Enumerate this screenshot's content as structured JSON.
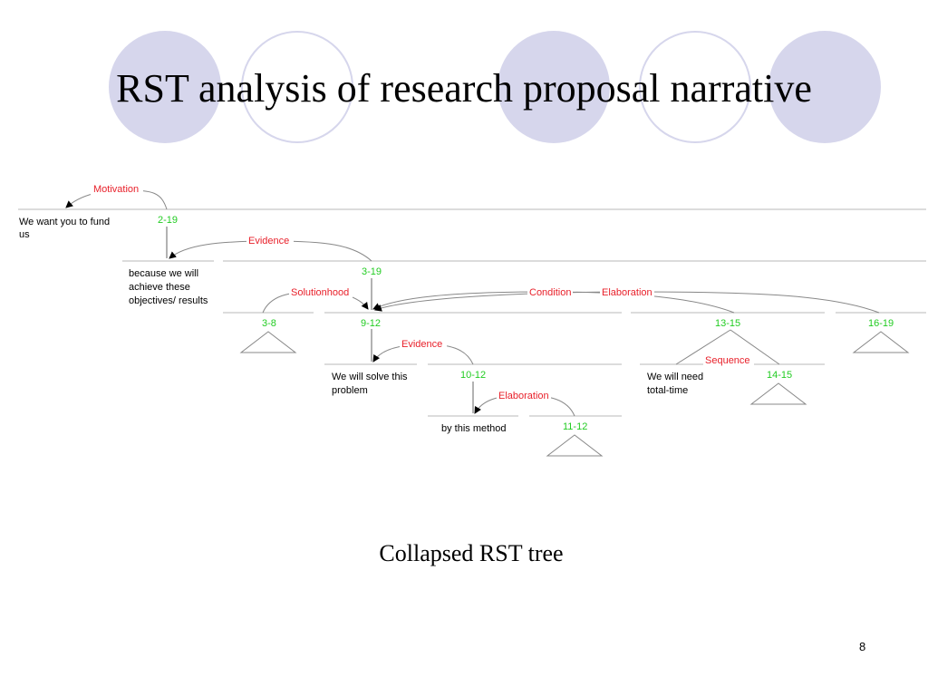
{
  "slide": {
    "title": "RST analysis of research proposal narrative",
    "caption": "Collapsed RST tree",
    "page_number": "8"
  },
  "tree": {
    "relations": {
      "motivation": "Motivation",
      "evidence_top": "Evidence",
      "solutionhood": "Solutionhood",
      "condition": "Condition",
      "elaboration_top": "Elaboration",
      "evidence_mid": "Evidence",
      "sequence": "Sequence",
      "elaboration_low": "Elaboration"
    },
    "spans": {
      "s2_19": "2-19",
      "s3_19": "3-19",
      "s3_8": "3-8",
      "s9_12": "9-12",
      "s13_15": "13-15",
      "s16_19": "16-19",
      "s10_12": "10-12",
      "s14_15": "14-15",
      "s11_12": "11-12"
    },
    "leaves": {
      "fund": [
        "We want you to fund",
        "us"
      ],
      "because": [
        "because we will",
        "achieve these",
        "objectives/ results"
      ],
      "solve": [
        "We will solve this",
        "problem"
      ],
      "need": [
        "We will need",
        "total-time"
      ],
      "method": [
        "by this method"
      ]
    }
  },
  "colors": {
    "relation_label": "#e8202a",
    "span_label": "#22cc22",
    "circle_fill": "#d6d6ec"
  }
}
